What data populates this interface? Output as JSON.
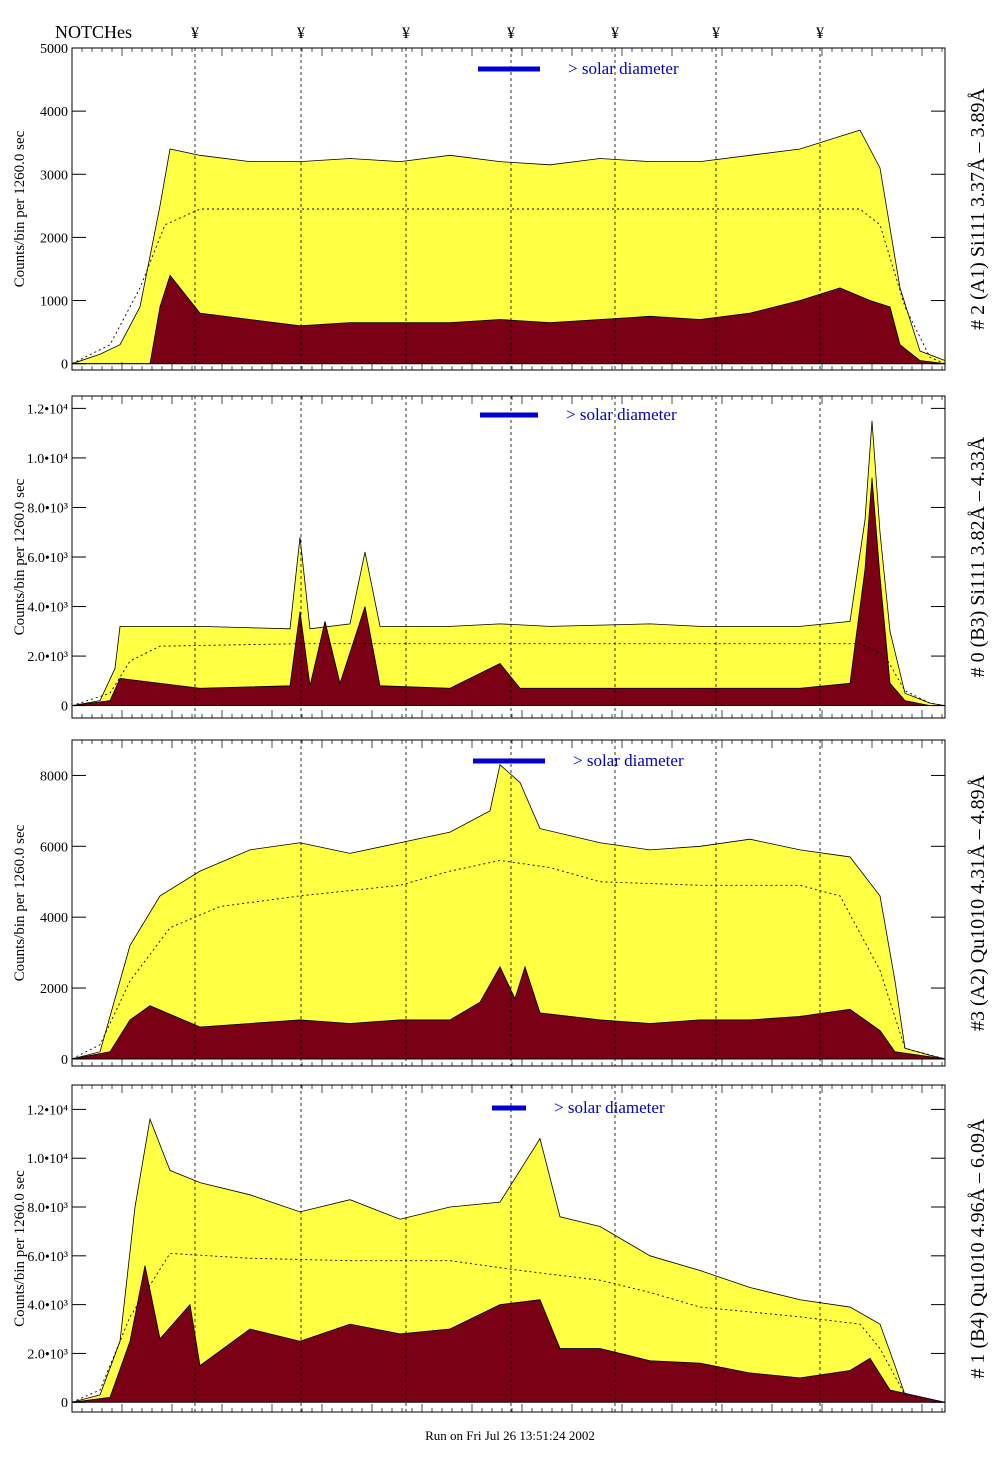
{
  "notches": {
    "title": "NOTCHes",
    "marker": "¥",
    "x": [
      195,
      301,
      406,
      511,
      615,
      716,
      820
    ]
  },
  "footer": {
    "text": "Run on Fri Jul 26 13:51:24 2002"
  },
  "colors": {
    "fill": "#ffff44",
    "dark": "#7a0016",
    "legend": "#0000d0",
    "text": "#0000c0"
  },
  "chart_data": [
    {
      "type": "area",
      "side_label": "# 2 (A1) Si111  3.37Å – 3.89Å",
      "ylabel": "Counts/bin per   1260.0 sec",
      "legend": "> solar diameter",
      "ylim": [
        -100,
        5000
      ],
      "y_ticks": [
        0,
        1000,
        2000,
        3000,
        4000,
        5000
      ],
      "y_tick_labels": [
        "0",
        "1000",
        "2000",
        "3000",
        "4000",
        "5000"
      ],
      "xlim": [
        72,
        945
      ],
      "total": [
        [
          72,
          0
        ],
        [
          100,
          150
        ],
        [
          120,
          300
        ],
        [
          140,
          900
        ],
        [
          160,
          2500
        ],
        [
          170,
          3400
        ],
        [
          200,
          3300
        ],
        [
          250,
          3200
        ],
        [
          300,
          3200
        ],
        [
          350,
          3250
        ],
        [
          400,
          3200
        ],
        [
          450,
          3300
        ],
        [
          500,
          3200
        ],
        [
          550,
          3150
        ],
        [
          600,
          3250
        ],
        [
          650,
          3200
        ],
        [
          700,
          3200
        ],
        [
          750,
          3300
        ],
        [
          800,
          3400
        ],
        [
          840,
          3600
        ],
        [
          860,
          3700
        ],
        [
          880,
          3100
        ],
        [
          900,
          1200
        ],
        [
          920,
          200
        ],
        [
          945,
          50
        ]
      ],
      "active": [
        [
          72,
          0
        ],
        [
          150,
          0
        ],
        [
          160,
          900
        ],
        [
          170,
          1400
        ],
        [
          200,
          800
        ],
        [
          250,
          700
        ],
        [
          300,
          600
        ],
        [
          350,
          650
        ],
        [
          400,
          650
        ],
        [
          450,
          650
        ],
        [
          500,
          700
        ],
        [
          550,
          650
        ],
        [
          600,
          700
        ],
        [
          650,
          750
        ],
        [
          700,
          700
        ],
        [
          750,
          800
        ],
        [
          800,
          1000
        ],
        [
          840,
          1200
        ],
        [
          870,
          1000
        ],
        [
          890,
          900
        ],
        [
          900,
          300
        ],
        [
          920,
          50
        ],
        [
          945,
          0
        ]
      ],
      "model": [
        [
          72,
          0
        ],
        [
          110,
          300
        ],
        [
          140,
          1200
        ],
        [
          165,
          2200
        ],
        [
          200,
          2450
        ],
        [
          300,
          2450
        ],
        [
          500,
          2450
        ],
        [
          700,
          2450
        ],
        [
          860,
          2450
        ],
        [
          880,
          2200
        ],
        [
          905,
          900
        ],
        [
          930,
          100
        ],
        [
          945,
          0
        ]
      ]
    },
    {
      "type": "area",
      "side_label": "# 0 (B3) Si111  3.82Å – 4.33Å",
      "ylabel": "Counts/bin per   1260.0 sec",
      "legend": "> solar diameter",
      "ylim": [
        -500,
        12500
      ],
      "y_ticks": [
        0,
        2000,
        4000,
        6000,
        8000,
        10000,
        12000
      ],
      "y_tick_labels": [
        "0",
        "2.0•10³",
        "4.0•10³",
        "6.0•10³",
        "8.0•10³",
        "1.0•10⁴",
        "1.2•10⁴"
      ],
      "xlim": [
        72,
        945
      ],
      "total": [
        [
          72,
          0
        ],
        [
          100,
          200
        ],
        [
          115,
          1500
        ],
        [
          120,
          3200
        ],
        [
          200,
          3200
        ],
        [
          290,
          3100
        ],
        [
          300,
          6800
        ],
        [
          310,
          3100
        ],
        [
          350,
          3300
        ],
        [
          365,
          6200
        ],
        [
          380,
          3200
        ],
        [
          450,
          3200
        ],
        [
          500,
          3300
        ],
        [
          550,
          3200
        ],
        [
          650,
          3300
        ],
        [
          700,
          3200
        ],
        [
          800,
          3200
        ],
        [
          850,
          3400
        ],
        [
          865,
          7500
        ],
        [
          872,
          11500
        ],
        [
          880,
          7000
        ],
        [
          890,
          3000
        ],
        [
          905,
          500
        ],
        [
          930,
          100
        ],
        [
          945,
          0
        ]
      ],
      "active": [
        [
          72,
          0
        ],
        [
          110,
          200
        ],
        [
          120,
          1100
        ],
        [
          200,
          700
        ],
        [
          290,
          800
        ],
        [
          300,
          3800
        ],
        [
          310,
          800
        ],
        [
          325,
          3400
        ],
        [
          340,
          900
        ],
        [
          365,
          4000
        ],
        [
          380,
          800
        ],
        [
          450,
          700
        ],
        [
          500,
          1700
        ],
        [
          520,
          700
        ],
        [
          650,
          700
        ],
        [
          800,
          700
        ],
        [
          850,
          900
        ],
        [
          865,
          5500
        ],
        [
          872,
          9200
        ],
        [
          880,
          5200
        ],
        [
          890,
          900
        ],
        [
          905,
          200
        ],
        [
          930,
          0
        ],
        [
          945,
          0
        ]
      ],
      "model": [
        [
          72,
          0
        ],
        [
          110,
          500
        ],
        [
          130,
          1800
        ],
        [
          160,
          2400
        ],
        [
          300,
          2500
        ],
        [
          500,
          2500
        ],
        [
          700,
          2500
        ],
        [
          860,
          2500
        ],
        [
          885,
          2000
        ],
        [
          905,
          600
        ],
        [
          930,
          100
        ],
        [
          945,
          0
        ]
      ]
    },
    {
      "type": "area",
      "side_label": "#3 (A2) Qu1010  4.31Å – 4.89Å",
      "ylabel": "Counts/bin per   1260.0 sec",
      "legend": "> solar diameter",
      "ylim": [
        -200,
        9000
      ],
      "y_ticks": [
        0,
        2000,
        4000,
        6000,
        8000
      ],
      "y_tick_labels": [
        "0",
        "2000",
        "4000",
        "6000",
        "8000"
      ],
      "xlim": [
        72,
        945
      ],
      "total": [
        [
          72,
          0
        ],
        [
          100,
          200
        ],
        [
          130,
          3200
        ],
        [
          160,
          4600
        ],
        [
          200,
          5300
        ],
        [
          250,
          5900
        ],
        [
          300,
          6100
        ],
        [
          350,
          5800
        ],
        [
          400,
          6100
        ],
        [
          450,
          6400
        ],
        [
          490,
          7000
        ],
        [
          500,
          8300
        ],
        [
          520,
          7800
        ],
        [
          540,
          6500
        ],
        [
          600,
          6100
        ],
        [
          650,
          5900
        ],
        [
          700,
          6000
        ],
        [
          750,
          6200
        ],
        [
          800,
          5900
        ],
        [
          850,
          5700
        ],
        [
          880,
          4600
        ],
        [
          895,
          2200
        ],
        [
          905,
          300
        ],
        [
          930,
          100
        ],
        [
          945,
          0
        ]
      ],
      "active": [
        [
          72,
          0
        ],
        [
          110,
          200
        ],
        [
          130,
          1100
        ],
        [
          150,
          1500
        ],
        [
          200,
          900
        ],
        [
          250,
          1000
        ],
        [
          300,
          1100
        ],
        [
          350,
          1000
        ],
        [
          400,
          1100
        ],
        [
          450,
          1100
        ],
        [
          480,
          1600
        ],
        [
          500,
          2600
        ],
        [
          515,
          1700
        ],
        [
          525,
          2600
        ],
        [
          540,
          1300
        ],
        [
          600,
          1100
        ],
        [
          650,
          1000
        ],
        [
          700,
          1100
        ],
        [
          750,
          1100
        ],
        [
          800,
          1200
        ],
        [
          850,
          1400
        ],
        [
          880,
          800
        ],
        [
          895,
          200
        ],
        [
          945,
          0
        ]
      ],
      "model": [
        [
          72,
          0
        ],
        [
          100,
          400
        ],
        [
          130,
          2200
        ],
        [
          170,
          3700
        ],
        [
          220,
          4300
        ],
        [
          300,
          4600
        ],
        [
          400,
          4900
        ],
        [
          450,
          5300
        ],
        [
          500,
          5600
        ],
        [
          550,
          5400
        ],
        [
          600,
          5000
        ],
        [
          700,
          4900
        ],
        [
          800,
          4900
        ],
        [
          840,
          4600
        ],
        [
          880,
          2500
        ],
        [
          905,
          300
        ],
        [
          945,
          0
        ]
      ]
    },
    {
      "type": "area",
      "side_label": "# 1 (B4) Qu1010 4.96Å – 6.09Å",
      "ylabel": "Counts/bin per   1260.0 sec",
      "legend": "> solar diameter",
      "ylim": [
        -400,
        13000
      ],
      "y_ticks": [
        0,
        2000,
        4000,
        6000,
        8000,
        10000,
        12000
      ],
      "y_tick_labels": [
        "0",
        "2.0•10³",
        "4.0•10³",
        "6.0•10³",
        "8.0•10³",
        "1.0•10⁴",
        "1.2•10⁴"
      ],
      "xlim": [
        72,
        945
      ],
      "total": [
        [
          72,
          0
        ],
        [
          100,
          300
        ],
        [
          120,
          2500
        ],
        [
          135,
          8000
        ],
        [
          150,
          11600
        ],
        [
          170,
          9500
        ],
        [
          200,
          9000
        ],
        [
          250,
          8500
        ],
        [
          300,
          7800
        ],
        [
          350,
          8300
        ],
        [
          400,
          7500
        ],
        [
          450,
          8000
        ],
        [
          500,
          8200
        ],
        [
          540,
          10800
        ],
        [
          560,
          7600
        ],
        [
          600,
          7200
        ],
        [
          650,
          6000
        ],
        [
          700,
          5400
        ],
        [
          750,
          4700
        ],
        [
          800,
          4200
        ],
        [
          850,
          3900
        ],
        [
          880,
          3200
        ],
        [
          895,
          1500
        ],
        [
          905,
          300
        ],
        [
          945,
          0
        ]
      ],
      "active": [
        [
          72,
          0
        ],
        [
          110,
          200
        ],
        [
          130,
          2500
        ],
        [
          145,
          5600
        ],
        [
          160,
          2600
        ],
        [
          190,
          4000
        ],
        [
          200,
          1500
        ],
        [
          250,
          3000
        ],
        [
          300,
          2500
        ],
        [
          350,
          3200
        ],
        [
          400,
          2800
        ],
        [
          450,
          3000
        ],
        [
          500,
          4000
        ],
        [
          540,
          4200
        ],
        [
          560,
          2200
        ],
        [
          600,
          2200
        ],
        [
          650,
          1700
        ],
        [
          700,
          1600
        ],
        [
          750,
          1200
        ],
        [
          800,
          1000
        ],
        [
          850,
          1300
        ],
        [
          870,
          1800
        ],
        [
          890,
          500
        ],
        [
          945,
          0
        ]
      ],
      "model": [
        [
          72,
          0
        ],
        [
          100,
          500
        ],
        [
          130,
          3500
        ],
        [
          170,
          6100
        ],
        [
          250,
          5900
        ],
        [
          350,
          5800
        ],
        [
          450,
          5800
        ],
        [
          520,
          5400
        ],
        [
          600,
          5000
        ],
        [
          650,
          4500
        ],
        [
          700,
          3900
        ],
        [
          800,
          3500
        ],
        [
          860,
          3200
        ],
        [
          880,
          2200
        ],
        [
          905,
          300
        ],
        [
          945,
          0
        ]
      ]
    }
  ]
}
